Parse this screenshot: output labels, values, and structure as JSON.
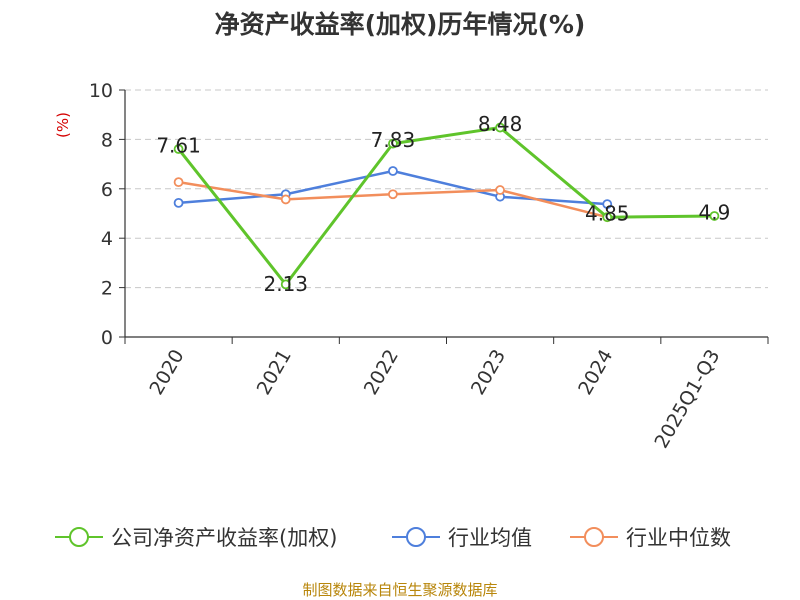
{
  "chart_data": {
    "type": "line",
    "title": "净资产收益率(加权)历年情况(%)",
    "ylabel": "(%)",
    "categories": [
      "2020",
      "2021",
      "2022",
      "2023",
      "2024",
      "2025Q1-Q3"
    ],
    "ylim": [
      0,
      10
    ],
    "yticks": [
      0,
      2,
      4,
      6,
      8,
      10
    ],
    "grid": true,
    "legend_position": "bottom",
    "series": [
      {
        "name": "公司净资产收益率(加权)",
        "color": "#5fc42b",
        "values": [
          7.61,
          2.13,
          7.83,
          8.48,
          4.85,
          4.9
        ],
        "labels": [
          "7.61",
          "2.13",
          "7.83",
          "8.48",
          "4.85",
          "4.9"
        ]
      },
      {
        "name": "行业均值",
        "color": "#4e7fdc",
        "values": [
          5.43,
          5.78,
          6.72,
          5.68,
          5.38,
          null
        ]
      },
      {
        "name": "行业中位数",
        "color": "#f28e5c",
        "values": [
          6.27,
          5.57,
          5.78,
          5.95,
          4.85,
          null
        ]
      }
    ]
  },
  "source": "制图数据来自恒生聚源数据库"
}
